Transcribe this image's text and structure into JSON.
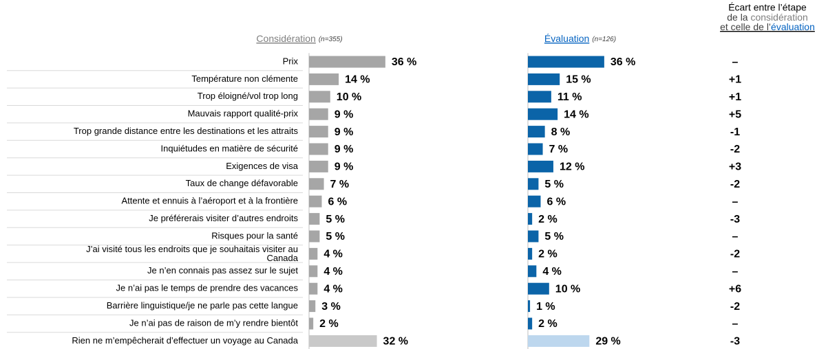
{
  "chart_data": {
    "type": "paired-bar",
    "categories": [
      "Prix",
      "Température non clémente",
      "Trop éloigné/vol trop long",
      "Mauvais rapport qualité-prix",
      "Trop grande distance entre les destinations et les attraits",
      "Inquiétudes en matière de sécurité",
      "Exigences de visa",
      "Taux de change défavorable",
      "Attente et ennuis à l’aéroport et à la frontière",
      "Je préférerais visiter d’autres endroits",
      "Risques pour la santé",
      [
        "J’ai visité tous les endroits que je souhaitais visiter au",
        "Canada"
      ],
      "Je n’en connais pas assez sur le sujet",
      "Je n’ai pas le temps de prendre des vacances",
      "Barrière linguistique/je ne parle pas cette langue",
      "Je n’ai pas de raison de m’y rendre bientôt",
      "Rien ne m’empêcherait d’effectuer un voyage au Canada"
    ],
    "series": [
      {
        "name": "Considération",
        "note": "(n=355)",
        "header_color": "#7f7f7f",
        "colors": [
          "#a6a6a6",
          "#a6a6a6",
          "#a6a6a6",
          "#a6a6a6",
          "#a6a6a6",
          "#a6a6a6",
          "#a6a6a6",
          "#a6a6a6",
          "#a6a6a6",
          "#a6a6a6",
          "#a6a6a6",
          "#a6a6a6",
          "#a6a6a6",
          "#a6a6a6",
          "#a6a6a6",
          "#a6a6a6",
          "#c9c9c9"
        ],
        "values": [
          36,
          14,
          10,
          9,
          9,
          9,
          9,
          7,
          6,
          5,
          5,
          4,
          4,
          4,
          3,
          2,
          32
        ],
        "value_labels": [
          "36 %",
          "14 %",
          "10 %",
          "9 %",
          "9 %",
          "9 %",
          "9 %",
          "7 %",
          "6 %",
          "5 %",
          "5 %",
          "4 %",
          "4 %",
          "4 %",
          "3 %",
          "2 %",
          "32 %"
        ]
      },
      {
        "name": "Évaluation",
        "note": "(n=126)",
        "header_color": "#0563c1",
        "colors": [
          "#0b64a8",
          "#0b64a8",
          "#0b64a8",
          "#0b64a8",
          "#0b64a8",
          "#0b64a8",
          "#0b64a8",
          "#0b64a8",
          "#0b64a8",
          "#0b64a8",
          "#0b64a8",
          "#0b64a8",
          "#0b64a8",
          "#0b64a8",
          "#0b64a8",
          "#0b64a8",
          "#bdd7ee"
        ],
        "values": [
          36,
          15,
          11,
          14,
          8,
          7,
          12,
          5,
          6,
          2,
          5,
          2,
          4,
          10,
          1,
          2,
          29
        ],
        "value_labels": [
          "36 %",
          "15 %",
          "11 %",
          "14 %",
          "8 %",
          "7 %",
          "12 %",
          "5 %",
          "6 %",
          "2 %",
          "5 %",
          "2 %",
          "4 %",
          "10 %",
          "1 %",
          "2 %",
          "29 %"
        ]
      }
    ],
    "gap": {
      "title": [
        "Écart entre l’étape",
        "de la ",
        "considération",
        "et celle de l’",
        "évaluation"
      ],
      "values": [
        0,
        1,
        1,
        5,
        -1,
        -2,
        3,
        -2,
        0,
        -3,
        0,
        -2,
        0,
        6,
        -2,
        0,
        -3
      ],
      "value_labels": [
        "–",
        "+1",
        "+1",
        "+5",
        "-1",
        "-2",
        "+3",
        "-2",
        "–",
        "-3",
        "–",
        "-2",
        "–",
        "+6",
        "-2",
        "–",
        "-3"
      ],
      "colors": {
        "positive": "#c00000",
        "negative": "#00b050",
        "zero": "#000000"
      }
    },
    "xlim": [
      0,
      100
    ]
  }
}
